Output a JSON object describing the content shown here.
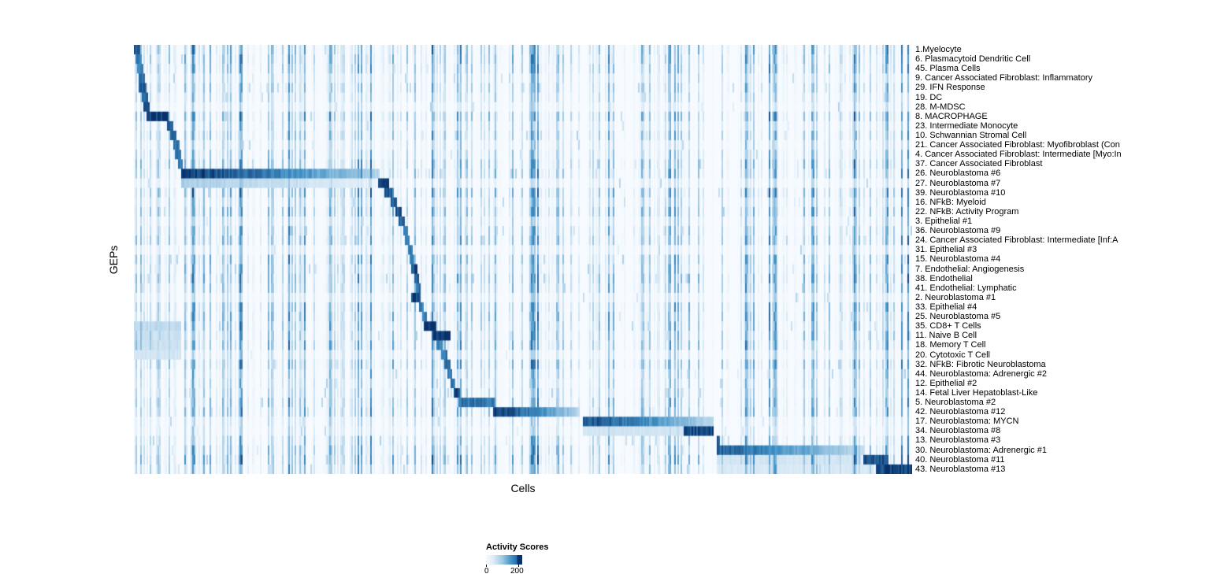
{
  "figure": {
    "y_axis_label": "GEPs",
    "x_axis_label": "Cells",
    "legend": {
      "title": "Activity Scores",
      "tick_min": "0",
      "tick_max": "200"
    }
  },
  "chart_data": {
    "type": "heatmap",
    "title": "",
    "xlabel": "Cells",
    "ylabel": "GEPs",
    "legend_title": "Activity Scores",
    "value_range": [
      0,
      200
    ],
    "colormap": "Blues",
    "color_min": "#f7fbff",
    "color_mid": "#4292c6",
    "color_max": "#08306b",
    "legend_position": "bottom-left",
    "grid": false,
    "gaps": [
      0.5735,
      0.7455
    ],
    "rows": [
      {
        "label": "1.Myelocyte",
        "bands": [
          [
            0.0,
            0.008,
            0.8,
            0
          ]
        ]
      },
      {
        "label": "6. Plasmacytoid Dendritic Cell",
        "bands": [
          [
            0.001,
            0.009,
            0.6,
            0
          ]
        ]
      },
      {
        "label": "45. Plasma Cells",
        "bands": [
          [
            0.003,
            0.011,
            0.6,
            0
          ]
        ]
      },
      {
        "label": "9. Cancer Associated Fibroblast: Inflammatory",
        "bands": [
          [
            0.005,
            0.013,
            0.65,
            0
          ]
        ]
      },
      {
        "label": "29. IFN Response",
        "bands": [
          [
            0.006,
            0.015,
            0.85,
            0
          ]
        ]
      },
      {
        "label": "19. DC",
        "bands": [
          [
            0.009,
            0.017,
            0.7,
            0
          ]
        ]
      },
      {
        "label": "28. M-MDSC",
        "bands": [
          [
            0.011,
            0.019,
            0.75,
            0
          ]
        ]
      },
      {
        "label": "8. MACROPHAGE",
        "bands": [
          [
            0.015,
            0.043,
            0.95,
            0
          ]
        ]
      },
      {
        "label": "23. Intermediate Monocyte",
        "bands": [
          [
            0.041,
            0.049,
            0.85,
            0
          ]
        ]
      },
      {
        "label": "10. Schwannian Stromal Cell",
        "bands": [
          [
            0.046,
            0.054,
            0.7,
            0
          ]
        ]
      },
      {
        "label": "21. Cancer Associated Fibroblast: Myofibroblast (Con",
        "bands": [
          [
            0.049,
            0.057,
            0.65,
            0
          ]
        ]
      },
      {
        "label": "4. Cancer Associated Fibroblast: Intermediate [Myo:In",
        "bands": [
          [
            0.052,
            0.059,
            0.6,
            0
          ]
        ]
      },
      {
        "label": "37. Cancer Associated Fibroblast",
        "bands": [
          [
            0.055,
            0.062,
            0.6,
            0
          ]
        ]
      },
      {
        "label": "26. Neuroblastoma #6",
        "bands": [
          [
            0.059,
            0.314,
            0.95,
            1
          ]
        ]
      },
      {
        "label": "27. Neuroblastoma #7",
        "bands": [
          [
            0.059,
            0.31,
            0.22,
            1
          ],
          [
            0.312,
            0.326,
            0.9,
            0
          ]
        ]
      },
      {
        "label": "39. Neuroblastoma #10",
        "bands": [
          [
            0.321,
            0.331,
            0.8,
            0
          ]
        ]
      },
      {
        "label": "16. NFkB: Myeloid",
        "bands": [
          [
            0.328,
            0.337,
            0.75,
            0
          ]
        ]
      },
      {
        "label": "22. NFkB: Activity Program",
        "bands": [
          [
            0.335,
            0.343,
            0.8,
            0
          ]
        ]
      },
      {
        "label": "3. Epithelial #1",
        "bands": [
          [
            0.34,
            0.347,
            0.7,
            0
          ]
        ]
      },
      {
        "label": "36. Neuroblastoma #9",
        "bands": [
          [
            0.345,
            0.351,
            0.65,
            0
          ]
        ]
      },
      {
        "label": "24. Cancer Associated Fibroblast: Intermediate [Inf:A",
        "bands": [
          [
            0.348,
            0.354,
            0.6,
            0
          ]
        ]
      },
      {
        "label": "31. Epithelial #3",
        "bands": [
          [
            0.351,
            0.357,
            0.6,
            0
          ]
        ]
      },
      {
        "label": "15. Neuroblastoma #4",
        "bands": [
          [
            0.354,
            0.36,
            0.6,
            0
          ]
        ]
      },
      {
        "label": "7. Endothelial: Angiogenesis",
        "bands": [
          [
            0.356,
            0.363,
            0.85,
            0
          ]
        ]
      },
      {
        "label": "38. Endothelial",
        "bands": [
          [
            0.359,
            0.366,
            0.8,
            0
          ]
        ]
      },
      {
        "label": "41. Endothelial: Lymphatic",
        "bands": [
          [
            0.362,
            0.368,
            0.7,
            0
          ]
        ]
      },
      {
        "label": "2. Neuroblastoma #1",
        "bands": [
          [
            0.356,
            0.368,
            0.9,
            0
          ]
        ]
      },
      {
        "label": "33. Epithelial #4",
        "bands": [
          [
            0.366,
            0.372,
            0.6,
            0
          ]
        ]
      },
      {
        "label": "25. Neuroblastoma #5",
        "bands": [
          [
            0.369,
            0.376,
            0.6,
            0
          ]
        ]
      },
      {
        "label": "35. CD8+ T Cells",
        "bands": [
          [
            0.0,
            0.06,
            0.15,
            0
          ],
          [
            0.372,
            0.387,
            0.95,
            0
          ]
        ]
      },
      {
        "label": "11. Naive B Cell",
        "bands": [
          [
            0.0,
            0.06,
            0.12,
            0
          ],
          [
            0.383,
            0.405,
            0.95,
            0
          ]
        ]
      },
      {
        "label": "18. Memory T Cell",
        "bands": [
          [
            0.0,
            0.06,
            0.12,
            0
          ],
          [
            0.388,
            0.396,
            0.6,
            0
          ]
        ]
      },
      {
        "label": "20. Cytotoxic T Cell",
        "bands": [
          [
            0.0,
            0.06,
            0.1,
            0
          ],
          [
            0.393,
            0.401,
            0.65,
            0
          ]
        ]
      },
      {
        "label": "32. NFkB: Fibrotic Neuroblastoma",
        "bands": [
          [
            0.398,
            0.405,
            0.7,
            0
          ]
        ]
      },
      {
        "label": "44. Neuroblastoma: Adrenergic #2",
        "bands": [
          [
            0.402,
            0.408,
            0.6,
            0
          ]
        ]
      },
      {
        "label": "12. Epithelial #2",
        "bands": [
          [
            0.406,
            0.412,
            0.6,
            0
          ]
        ]
      },
      {
        "label": "14. Fetal Liver Hepatoblast-Like",
        "bands": [
          [
            0.41,
            0.418,
            0.9,
            0
          ]
        ]
      },
      {
        "label": "5. Neuroblastoma #2",
        "bands": [
          [
            0.415,
            0.463,
            0.65,
            0
          ]
        ]
      },
      {
        "label": "42. Neuroblastoma #12",
        "bands": [
          [
            0.461,
            0.573,
            0.95,
            1
          ]
        ]
      },
      {
        "label": "17. Neuroblastoma: MYCN",
        "bands": [
          [
            0.575,
            0.744,
            0.85,
            1
          ]
        ]
      },
      {
        "label": "34. Neuroblastoma #8",
        "bands": [
          [
            0.575,
            0.744,
            0.1,
            0
          ],
          [
            0.706,
            0.744,
            0.85,
            0
          ]
        ]
      },
      {
        "label": "13. Neuroblastoma #3",
        "bands": [
          [
            0.744,
            0.752,
            0.8,
            0
          ]
        ]
      },
      {
        "label": "30. Neuroblastoma: Adrenergic #1",
        "bands": [
          [
            0.747,
            0.939,
            0.75,
            1
          ]
        ]
      },
      {
        "label": "40. Neuroblastoma #11",
        "bands": [
          [
            0.747,
            0.935,
            0.1,
            0
          ],
          [
            0.937,
            0.969,
            0.8,
            0
          ]
        ]
      },
      {
        "label": "43. Neuroblastoma #13",
        "bands": [
          [
            0.747,
            0.95,
            0.08,
            0
          ],
          [
            0.953,
            1.0,
            0.9,
            0
          ]
        ]
      }
    ]
  }
}
